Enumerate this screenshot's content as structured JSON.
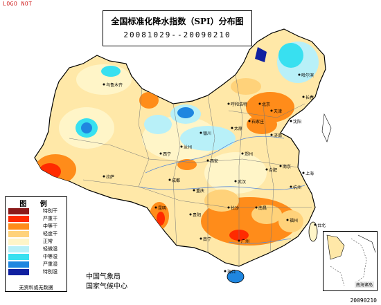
{
  "corner_note": "LOGO NOT",
  "title": {
    "line1": "全国标准化降水指数（SPI）分布图",
    "line2": "20081029--20090210"
  },
  "legend": {
    "heading": "图 例",
    "items": [
      {
        "label": "特别干",
        "color": "#8b1a1a"
      },
      {
        "label": "严重干",
        "color": "#ff2a00"
      },
      {
        "label": "中等干",
        "color": "#ff8c1a"
      },
      {
        "label": "轻度干",
        "color": "#ffd27a"
      },
      {
        "label": "正常",
        "color": "#fff5c8"
      },
      {
        "label": "轻微湿",
        "color": "#b8f0f8"
      },
      {
        "label": "中等湿",
        "color": "#38e0f0"
      },
      {
        "label": "严重湿",
        "color": "#1f86e0"
      },
      {
        "label": "特别湿",
        "color": "#1020a0"
      }
    ],
    "footer": "无资料或无数据"
  },
  "agency": {
    "line1": "中国气象局",
    "line2": "国家气候中心"
  },
  "inset_label": "南海诸岛",
  "date_stamp": "20090210",
  "cities": [
    {
      "name": "乌鲁木齐"
    },
    {
      "name": "呼和浩特"
    },
    {
      "name": "北京"
    },
    {
      "name": "天津"
    },
    {
      "name": "石家庄"
    },
    {
      "name": "太原"
    },
    {
      "name": "济南"
    },
    {
      "name": "郑州"
    },
    {
      "name": "西安"
    },
    {
      "name": "兰州"
    },
    {
      "name": "西宁"
    },
    {
      "name": "银川"
    },
    {
      "name": "拉萨"
    },
    {
      "name": "成都"
    },
    {
      "name": "重庆"
    },
    {
      "name": "武汉"
    },
    {
      "name": "南京"
    },
    {
      "name": "上海"
    },
    {
      "name": "杭州"
    },
    {
      "name": "合肥"
    },
    {
      "name": "长沙"
    },
    {
      "name": "南昌"
    },
    {
      "name": "福州"
    },
    {
      "name": "贵阳"
    },
    {
      "name": "昆明"
    },
    {
      "name": "南宁"
    },
    {
      "name": "广州"
    },
    {
      "name": "海口"
    },
    {
      "name": "台北"
    },
    {
      "name": "沈阳"
    },
    {
      "name": "长春"
    },
    {
      "name": "哈尔滨"
    }
  ]
}
